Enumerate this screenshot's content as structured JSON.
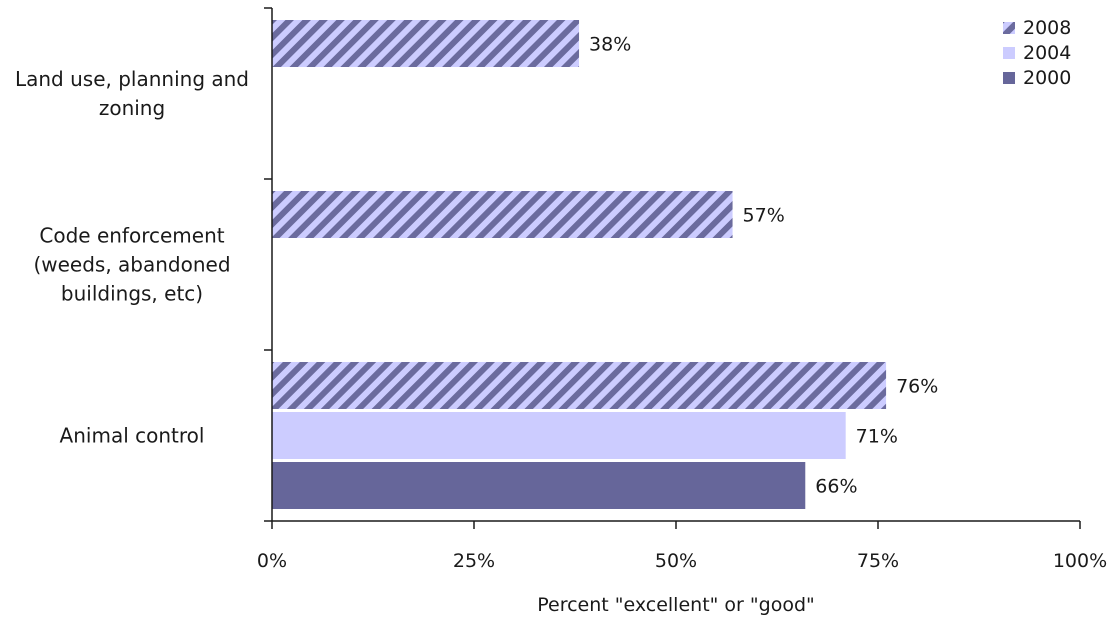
{
  "chart_data": {
    "type": "bar",
    "orientation": "horizontal",
    "categories": [
      [
        "Land use, planning and",
        "zoning"
      ],
      [
        "Code enforcement",
        "(weeds, abandoned",
        "buildings, etc)"
      ],
      [
        "Animal control"
      ]
    ],
    "series": [
      {
        "name": "2008",
        "values": [
          38,
          57,
          76
        ],
        "color": "#6b6b9e",
        "pattern": "diagonal-stripes"
      },
      {
        "name": "2004",
        "values": [
          null,
          null,
          71
        ],
        "color": "#ccccff",
        "pattern": "solid"
      },
      {
        "name": "2000",
        "values": [
          null,
          null,
          66
        ],
        "color": "#66669a",
        "pattern": "solid"
      }
    ],
    "data_labels": [
      [
        "38%",
        "57%",
        "76%"
      ],
      [
        null,
        null,
        "71%"
      ],
      [
        null,
        null,
        "66%"
      ]
    ],
    "xlabel": "Percent \"excellent\" or \"good\"",
    "xlim": [
      0,
      100
    ],
    "x_ticks": [
      0,
      25,
      50,
      75,
      100
    ],
    "x_tick_labels": [
      "0%",
      "25%",
      "50%",
      "75%",
      "100%"
    ],
    "legend": {
      "placement": "top-right",
      "entries": [
        "2008",
        "2004",
        "2000"
      ]
    },
    "grid": false
  }
}
